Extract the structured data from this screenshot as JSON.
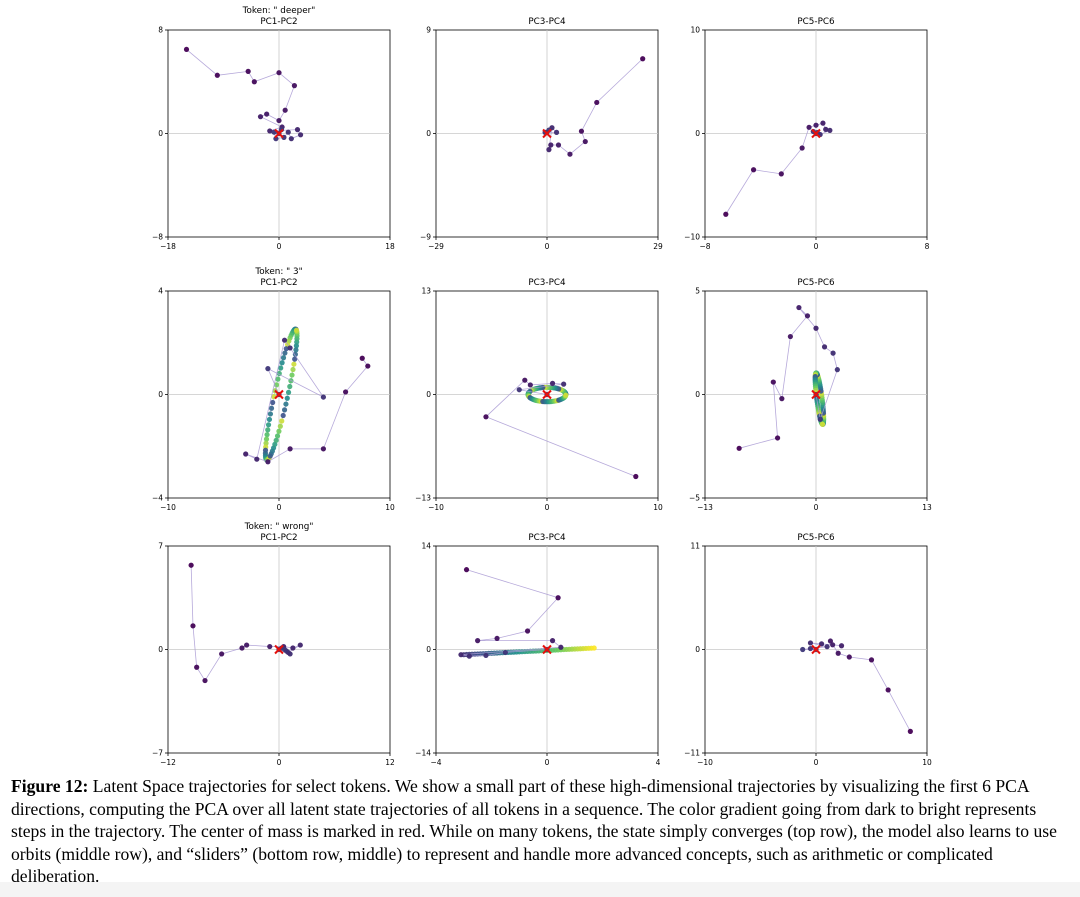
{
  "chart_data": [
    {
      "type": "scatter",
      "token": "Token: \" deeper\"",
      "title": "PC1-PC2",
      "xlim": [
        -18,
        18
      ],
      "ylim": [
        -8,
        8
      ],
      "xticks": [
        "−18",
        "0",
        "18"
      ],
      "yticks": [
        "8",
        "0",
        "−8"
      ],
      "points": [
        [
          -15,
          6.5
        ],
        [
          -10,
          4.5
        ],
        [
          -5,
          4.8
        ],
        [
          -4,
          4
        ],
        [
          0,
          4.7
        ],
        [
          2.5,
          3.7
        ],
        [
          1,
          1.8
        ],
        [
          0,
          1
        ],
        [
          -2,
          1.5
        ],
        [
          -3,
          1.3
        ],
        [
          0.5,
          0.5
        ],
        [
          -1.5,
          0.2
        ],
        [
          3,
          0.3
        ],
        [
          3.5,
          -0.1
        ],
        [
          2,
          -0.4
        ],
        [
          1.5,
          0.1
        ],
        [
          0.8,
          -0.3
        ],
        [
          -0.5,
          -0.4
        ],
        [
          -0.8,
          0.1
        ],
        [
          0.4,
          0.3
        ],
        [
          0,
          0
        ]
      ],
      "center": [
        0,
        0
      ]
    },
    {
      "type": "scatter",
      "title": "PC3-PC4",
      "xlim": [
        -29,
        29
      ],
      "ylim": [
        -9,
        9
      ],
      "xticks": [
        "−29",
        "0",
        "29"
      ],
      "yticks": [
        "9",
        "0",
        "−9"
      ],
      "points": [
        [
          25,
          6.5
        ],
        [
          13,
          2.7
        ],
        [
          9,
          0.2
        ],
        [
          10,
          -0.7
        ],
        [
          6,
          -1.8
        ],
        [
          3,
          -1
        ],
        [
          1,
          -1
        ],
        [
          0.5,
          -1.4
        ],
        [
          1.3,
          0.5
        ],
        [
          2.5,
          0.1
        ],
        [
          -0.5,
          0.1
        ],
        [
          0.5,
          0.3
        ],
        [
          0,
          0.1
        ]
      ],
      "center": [
        0,
        0
      ]
    },
    {
      "type": "scatter",
      "title": "PC5-PC6",
      "xlim": [
        -8,
        8
      ],
      "ylim": [
        -10,
        10
      ],
      "xticks": [
        "−8",
        "0",
        "8"
      ],
      "yticks": [
        "10",
        "0",
        "−10"
      ],
      "points": [
        [
          -6.5,
          -7.8
        ],
        [
          -4.5,
          -3.5
        ],
        [
          -2.5,
          -3.9
        ],
        [
          -1,
          -1.4
        ],
        [
          -0.5,
          0.6
        ],
        [
          0,
          0.8
        ],
        [
          0.5,
          1
        ],
        [
          0.7,
          0.4
        ],
        [
          1,
          0.3
        ],
        [
          0.3,
          -0.1
        ],
        [
          -0.2,
          0.2
        ],
        [
          0.1,
          0.1
        ],
        [
          0,
          0
        ]
      ],
      "center": [
        0,
        0
      ]
    },
    {
      "type": "scatter",
      "token": "Token: \" 3\"",
      "title": "PC1-PC2",
      "xlim": [
        -10,
        10
      ],
      "ylim": [
        -4,
        4
      ],
      "xticks": [
        "−10",
        "0",
        "10"
      ],
      "yticks": [
        "4",
        "0",
        "−4"
      ],
      "orbit": {
        "cx": 0.2,
        "cy": 0,
        "a": 2.85,
        "b": 0.55,
        "angle": 62
      },
      "points": [
        [
          7.5,
          1.4
        ],
        [
          8,
          1.1
        ],
        [
          6,
          0.1
        ],
        [
          4,
          -2.1
        ],
        [
          1,
          -2.1
        ],
        [
          -1,
          -2.6
        ],
        [
          -3,
          -2.3
        ],
        [
          -2,
          -2.5
        ],
        [
          0.5,
          2.1
        ],
        [
          1,
          1.8
        ],
        [
          4,
          -0.1
        ],
        [
          -1,
          1
        ],
        [
          0,
          0
        ]
      ],
      "center": [
        0,
        0
      ]
    },
    {
      "type": "scatter",
      "title": "PC3-PC4",
      "xlim": [
        -10,
        10
      ],
      "ylim": [
        -13,
        13
      ],
      "xticks": [
        "−10",
        "0",
        "10"
      ],
      "yticks": [
        "13",
        "0",
        "−13"
      ],
      "orbit": {
        "cx": 0,
        "cy": 0,
        "a": 1.7,
        "b": 0.9,
        "angle": 0
      },
      "points": [
        [
          8,
          -10.3
        ],
        [
          -5.5,
          -2.8
        ],
        [
          -2,
          1.8
        ],
        [
          -1.5,
          1.2
        ],
        [
          0.5,
          1.4
        ],
        [
          1.5,
          1.3
        ],
        [
          -2.5,
          0.6
        ],
        [
          0,
          0
        ]
      ],
      "center": [
        0,
        0
      ]
    },
    {
      "type": "scatter",
      "title": "PC5-PC6",
      "xlim": [
        -13,
        13
      ],
      "ylim": [
        -5,
        5
      ],
      "xticks": [
        "−13",
        "0",
        "13"
      ],
      "yticks": [
        "5",
        "0",
        "−5"
      ],
      "orbit": {
        "cx": 0.4,
        "cy": -0.2,
        "a": 1.3,
        "b": 0.3,
        "angle": -72
      },
      "points": [
        [
          -9,
          -2.6
        ],
        [
          -4.5,
          -2.1
        ],
        [
          -5,
          0.6
        ],
        [
          -4,
          -0.2
        ],
        [
          -3,
          2.8
        ],
        [
          -1,
          3.8
        ],
        [
          -2,
          4.2
        ],
        [
          0,
          3.2
        ],
        [
          1,
          2.3
        ],
        [
          2,
          2
        ],
        [
          2.5,
          1.2
        ],
        [
          0.5,
          -1.2
        ],
        [
          0,
          0
        ]
      ],
      "center": [
        0,
        0
      ]
    },
    {
      "type": "scatter",
      "token": "Token: \" wrong\"",
      "title": "PC1-PC2",
      "xlim": [
        -12,
        12
      ],
      "ylim": [
        -7,
        7
      ],
      "xticks": [
        "−12",
        "0",
        "12"
      ],
      "yticks": [
        "7",
        "0",
        "−7"
      ],
      "points": [
        [
          -9.5,
          5.7
        ],
        [
          -9.3,
          1.6
        ],
        [
          -8.9,
          -1.2
        ],
        [
          -8,
          -2.1
        ],
        [
          -6.2,
          -0.3
        ],
        [
          -4,
          0.1
        ],
        [
          -3.5,
          0.3
        ],
        [
          -1,
          0.2
        ],
        [
          0.5,
          0.2
        ],
        [
          1.5,
          0.1
        ],
        [
          2.3,
          0.3
        ],
        [
          1,
          -0.2
        ],
        [
          1.2,
          -0.3
        ],
        [
          0.8,
          -0.1
        ],
        [
          0.6,
          0
        ],
        [
          0.3,
          0.1
        ],
        [
          0,
          0
        ]
      ],
      "center": [
        0,
        0
      ]
    },
    {
      "type": "scatter",
      "title": "PC3-PC4",
      "xlim": [
        -4,
        4
      ],
      "ylim": [
        -14,
        14
      ],
      "xticks": [
        "−4",
        "0",
        "4"
      ],
      "yticks": [
        "14",
        "0",
        "−14"
      ],
      "slider": {
        "x1": -3,
        "y1": -0.7,
        "x2": 1.7,
        "y2": 0.2
      },
      "points": [
        [
          -2.9,
          10.8
        ],
        [
          0.4,
          7
        ],
        [
          -0.7,
          2.5
        ],
        [
          -1.8,
          1.5
        ],
        [
          -2.5,
          1.2
        ],
        [
          0.2,
          1.2
        ],
        [
          0.5,
          0.3
        ],
        [
          -3.1,
          -0.7
        ],
        [
          -2.8,
          -0.9
        ],
        [
          -2.2,
          -0.8
        ],
        [
          -1.5,
          -0.4
        ],
        [
          0,
          0
        ]
      ],
      "center": [
        0,
        0
      ]
    },
    {
      "type": "scatter",
      "title": "PC5-PC6",
      "xlim": [
        -10,
        10
      ],
      "ylim": [
        -11,
        11
      ],
      "xticks": [
        "−10",
        "0",
        "10"
      ],
      "yticks": [
        "11",
        "0",
        "−11"
      ],
      "points": [
        [
          8.5,
          -8.7
        ],
        [
          6.5,
          -4.3
        ],
        [
          5,
          -1.1
        ],
        [
          3,
          -0.8
        ],
        [
          2,
          -0.4
        ],
        [
          1.3,
          0.9
        ],
        [
          1.5,
          0.5
        ],
        [
          2.3,
          0.4
        ],
        [
          0.5,
          0.6
        ],
        [
          -0.5,
          0.7
        ],
        [
          1,
          0.3
        ],
        [
          -0.5,
          0.1
        ],
        [
          -1.2,
          0
        ],
        [
          0,
          0
        ]
      ],
      "center": [
        0,
        0
      ]
    }
  ],
  "caption": {
    "label": "Figure 12:",
    "text": "Latent Space trajectories for select tokens. We show a small part of these high-dimensional trajectories by visualizing the first 6 PCA directions, computing the PCA over all latent state trajectories of all tokens in a sequence. The color gradient going from dark to bright represents steps in the trajectory. The center of mass is marked in red. While on many tokens, the state simply converges (top row), the model also learns to use orbits (middle row), and “sliders” (bottom row, middle) to represent and handle more advanced concepts, such as arithmetic or complicated deliberation."
  }
}
